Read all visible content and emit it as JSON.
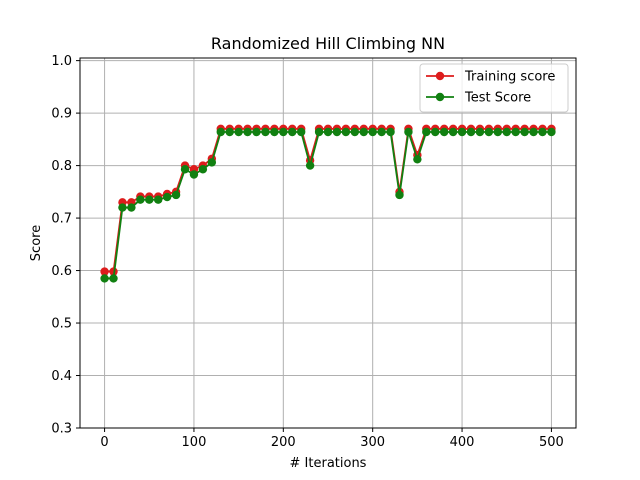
{
  "chart_data": {
    "type": "line",
    "title": "Randomized Hill Climbing NN",
    "xlabel": "# Iterations",
    "ylabel": "Score",
    "xlim": [
      -27.5,
      527.5
    ],
    "ylim": [
      0.3,
      1.005
    ],
    "xticks": [
      0,
      100,
      200,
      300,
      400,
      500
    ],
    "yticks": [
      0.3,
      0.4,
      0.5,
      0.6,
      0.7,
      0.8,
      0.9,
      1.0
    ],
    "xtick_labels": [
      "0",
      "100",
      "200",
      "300",
      "400",
      "500"
    ],
    "ytick_labels": [
      "0.3",
      "0.4",
      "0.5",
      "0.6",
      "0.7",
      "0.8",
      "0.9",
      "1.0"
    ],
    "grid": true,
    "legend_position": "upper-right",
    "x": [
      0,
      10,
      20,
      30,
      40,
      50,
      60,
      70,
      80,
      90,
      100,
      110,
      120,
      130,
      140,
      150,
      160,
      170,
      180,
      190,
      200,
      210,
      220,
      230,
      240,
      250,
      260,
      270,
      280,
      290,
      300,
      310,
      320,
      330,
      340,
      350,
      360,
      370,
      380,
      390,
      400,
      410,
      420,
      430,
      440,
      450,
      460,
      470,
      480,
      490,
      500
    ],
    "series": [
      {
        "name": "Training score",
        "color": "#dd1c1c",
        "values": [
          0.598,
          0.598,
          0.73,
          0.73,
          0.741,
          0.741,
          0.741,
          0.746,
          0.75,
          0.8,
          0.793,
          0.8,
          0.813,
          0.87,
          0.87,
          0.87,
          0.87,
          0.87,
          0.87,
          0.87,
          0.87,
          0.87,
          0.87,
          0.81,
          0.87,
          0.87,
          0.87,
          0.87,
          0.87,
          0.87,
          0.87,
          0.87,
          0.87,
          0.75,
          0.87,
          0.82,
          0.87,
          0.87,
          0.87,
          0.87,
          0.87,
          0.87,
          0.87,
          0.87,
          0.87,
          0.87,
          0.87,
          0.87,
          0.87,
          0.87,
          0.87
        ]
      },
      {
        "name": "Test Score",
        "color": "#118011",
        "values": [
          0.585,
          0.585,
          0.72,
          0.72,
          0.735,
          0.735,
          0.735,
          0.74,
          0.744,
          0.793,
          0.783,
          0.793,
          0.806,
          0.864,
          0.864,
          0.864,
          0.864,
          0.864,
          0.864,
          0.864,
          0.864,
          0.864,
          0.864,
          0.8,
          0.864,
          0.864,
          0.864,
          0.864,
          0.864,
          0.864,
          0.864,
          0.864,
          0.864,
          0.744,
          0.864,
          0.812,
          0.864,
          0.864,
          0.864,
          0.864,
          0.864,
          0.864,
          0.864,
          0.864,
          0.864,
          0.864,
          0.864,
          0.864,
          0.864,
          0.864,
          0.864
        ]
      }
    ]
  }
}
